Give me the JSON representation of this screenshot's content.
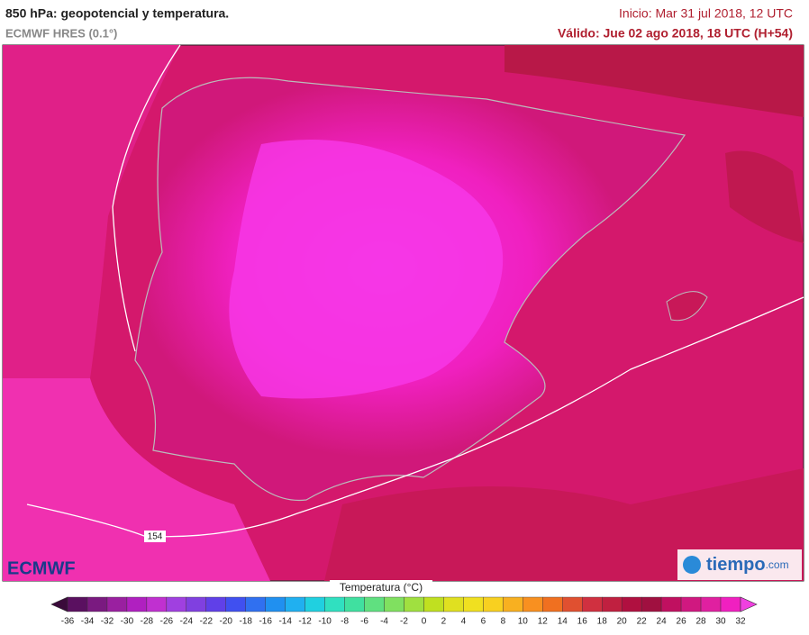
{
  "header": {
    "title": "850 hPa: geopotencial y temperatura.",
    "model": "ECMWF HRES (0.1°)",
    "init": "Inicio: Mar 31 jul 2018, 12 UTC",
    "valid": "Válido: Jue 02 ago 2018, 18 UTC (H+54)"
  },
  "map": {
    "contour_label": "154"
  },
  "logos": {
    "left": "ECMWF",
    "right": "tiempo",
    "right_suffix": ".com"
  },
  "colorbar": {
    "title": "Temperatura (°C)",
    "ticks": [
      -36,
      -34,
      -32,
      -30,
      -28,
      -26,
      -24,
      -22,
      -20,
      -18,
      -16,
      -14,
      -12,
      -10,
      -8,
      -6,
      -4,
      -2,
      0,
      2,
      4,
      6,
      8,
      10,
      12,
      14,
      16,
      18,
      20,
      22,
      24,
      26,
      28,
      30,
      32
    ],
    "colors": [
      "#3a0a3a",
      "#5a1060",
      "#7a1a80",
      "#9a20a0",
      "#b020c0",
      "#c030d0",
      "#a040e0",
      "#8040e0",
      "#6040e8",
      "#4050f0",
      "#3070f0",
      "#2090f0",
      "#20b0f0",
      "#20d0e0",
      "#30e0c0",
      "#40e0a0",
      "#60e080",
      "#80e060",
      "#a0e040",
      "#c0e020",
      "#e0e020",
      "#f0e020",
      "#f8d020",
      "#f8b020",
      "#f89020",
      "#f07020",
      "#e05030",
      "#d03040",
      "#c02040",
      "#b01040",
      "#a01040",
      "#c01060",
      "#d01880",
      "#e020a0",
      "#f020c0",
      "#f040e0"
    ]
  }
}
